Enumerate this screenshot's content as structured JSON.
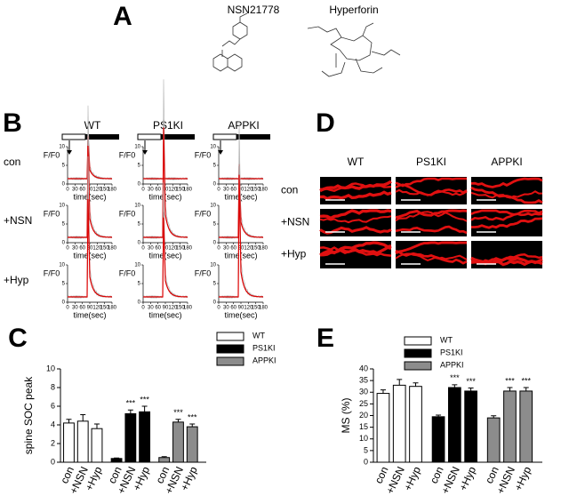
{
  "panel_labels": [
    "A",
    "B",
    "C",
    "D",
    "E"
  ],
  "compounds": [
    "NSN21778",
    "Hyperforin"
  ],
  "traces": {
    "columns": [
      "WT",
      "PS1KI",
      "APPKI"
    ],
    "rows": [
      "con",
      "+NSN",
      "+Hyp"
    ],
    "x_label": "time(sec)",
    "y_label": "F/F0",
    "xlim": [
      0,
      180
    ],
    "ylim": [
      0,
      10
    ],
    "xticks": [
      0,
      30,
      60,
      90,
      120,
      150,
      180
    ],
    "yticks": [
      0,
      5,
      10
    ]
  },
  "images": {
    "columns": [
      "WT",
      "PS1KI",
      "APPKI"
    ],
    "rows": [
      "con",
      "+NSN",
      "+Hyp"
    ]
  },
  "chart_data": [
    {
      "type": "bar",
      "y_label": "spine SOC peak",
      "categories": [
        "con",
        "+NSN",
        "+Hyp",
        "con",
        "+NSN",
        "+Hyp",
        "con",
        "+NSN",
        "+Hyp"
      ],
      "series": [
        {
          "name": "WT",
          "color": "#ffffff",
          "values": [
            4.2,
            4.4,
            3.6,
            null,
            null,
            null,
            null,
            null,
            null
          ],
          "errors": [
            0.4,
            0.7,
            0.5,
            null,
            null,
            null,
            null,
            null,
            null
          ]
        },
        {
          "name": "PS1KI",
          "color": "#000000",
          "values": [
            null,
            null,
            null,
            0.4,
            5.2,
            5.4,
            null,
            null,
            null
          ],
          "errors": [
            null,
            null,
            null,
            0.05,
            0.4,
            0.6,
            null,
            null,
            null
          ]
        },
        {
          "name": "APPKI",
          "color": "#8c8c8c",
          "values": [
            null,
            null,
            null,
            null,
            null,
            null,
            0.5,
            4.3,
            3.8
          ],
          "errors": [
            null,
            null,
            null,
            null,
            null,
            null,
            0.1,
            0.3,
            0.3
          ]
        }
      ],
      "annotations": [
        null,
        null,
        null,
        null,
        "***",
        "***",
        null,
        "***",
        "***"
      ],
      "ylim": [
        0,
        10
      ],
      "yticks": [
        0,
        2,
        4,
        6,
        8,
        10
      ]
    },
    {
      "type": "bar",
      "y_label": "MS (%)",
      "categories": [
        "con",
        "+NSN",
        "+Hyp",
        "con",
        "+NSN",
        "+Hyp",
        "con",
        "+NSN",
        "+Hyp"
      ],
      "series": [
        {
          "name": "WT",
          "color": "#ffffff",
          "values": [
            29.5,
            33,
            32.5,
            null,
            null,
            null,
            null,
            null,
            null
          ],
          "errors": [
            1.5,
            2.5,
            1.5,
            null,
            null,
            null,
            null,
            null,
            null
          ]
        },
        {
          "name": "PS1KI",
          "color": "#000000",
          "values": [
            null,
            null,
            null,
            19.5,
            32,
            30.5,
            null,
            null,
            null
          ],
          "errors": [
            null,
            null,
            null,
            0.7,
            1.2,
            1.3,
            null,
            null,
            null
          ]
        },
        {
          "name": "APPKI",
          "color": "#8c8c8c",
          "values": [
            null,
            null,
            null,
            null,
            null,
            null,
            19,
            30.5,
            30.5
          ],
          "errors": [
            null,
            null,
            null,
            null,
            null,
            null,
            0.9,
            1.5,
            1.5
          ]
        }
      ],
      "annotations": [
        null,
        null,
        null,
        null,
        "***",
        "***",
        null,
        "***",
        "***"
      ],
      "ylim": [
        0,
        40
      ],
      "yticks": [
        0,
        5,
        10,
        15,
        20,
        25,
        30,
        35,
        40
      ]
    }
  ]
}
